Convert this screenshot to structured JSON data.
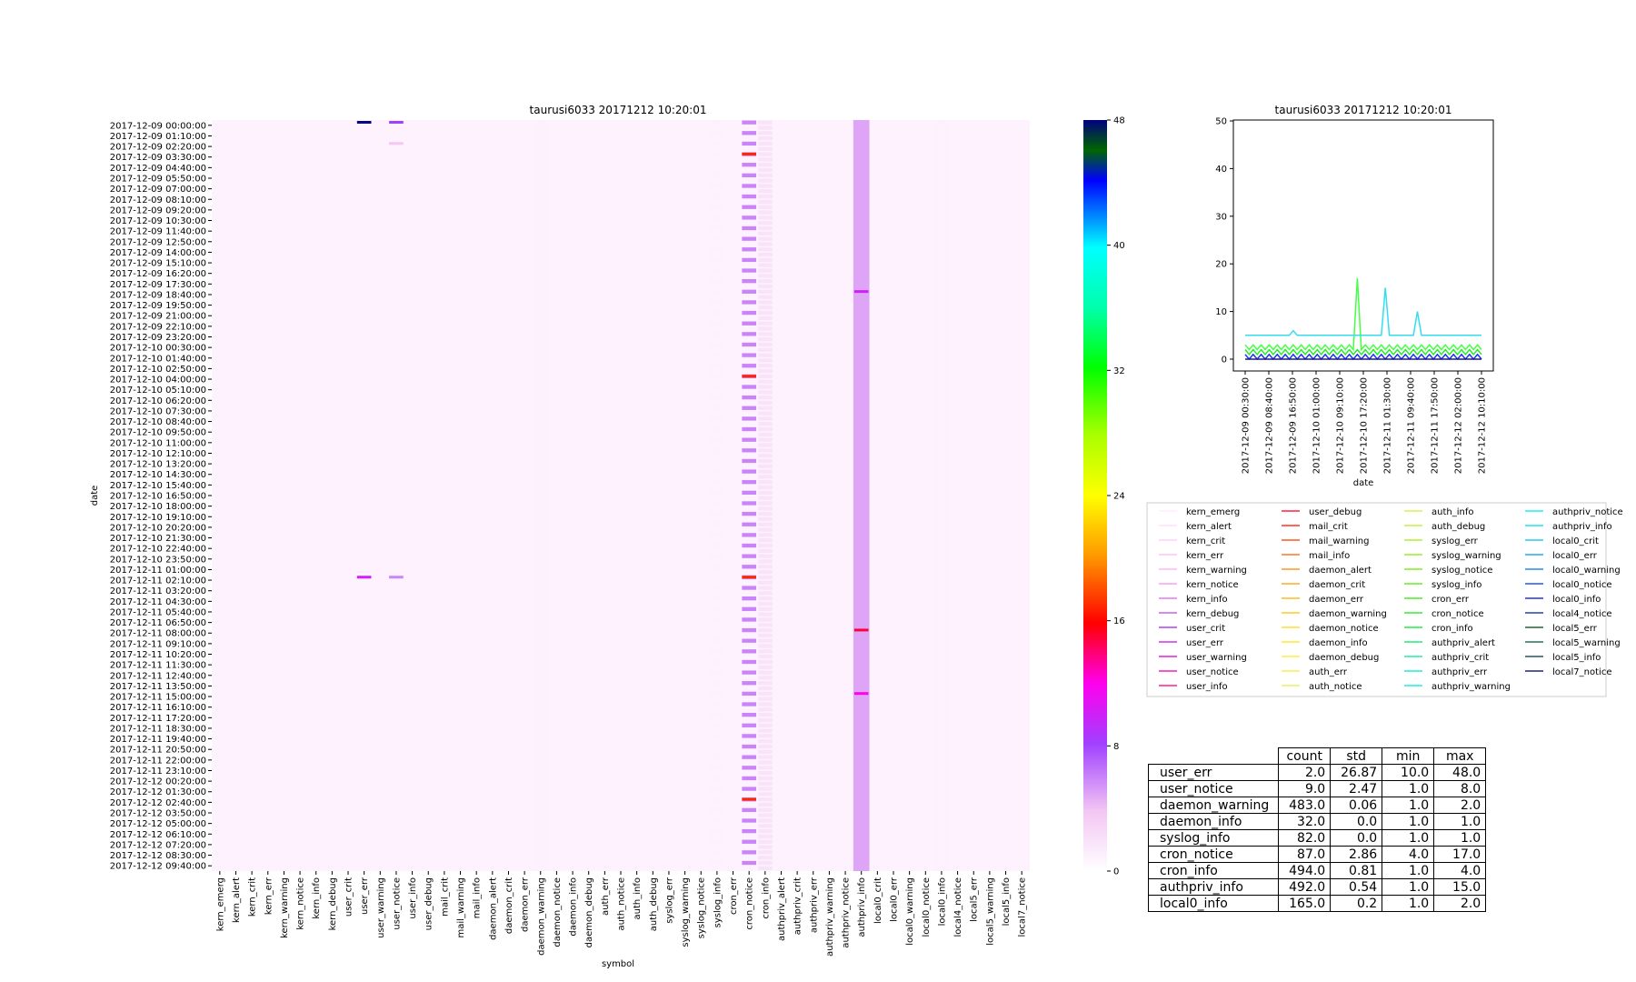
{
  "heatmap": {
    "title": "taurusi6033 20171212 10:20:01",
    "xlabel": "symbol",
    "ylabel": "date",
    "y_ticks": [
      "2017-12-09 00:00:00",
      "2017-12-09 01:10:00",
      "2017-12-09 02:20:00",
      "2017-12-09 03:30:00",
      "2017-12-09 04:40:00",
      "2017-12-09 05:50:00",
      "2017-12-09 07:00:00",
      "2017-12-09 08:10:00",
      "2017-12-09 09:20:00",
      "2017-12-09 10:30:00",
      "2017-12-09 11:40:00",
      "2017-12-09 12:50:00",
      "2017-12-09 14:00:00",
      "2017-12-09 15:10:00",
      "2017-12-09 16:20:00",
      "2017-12-09 17:30:00",
      "2017-12-09 18:40:00",
      "2017-12-09 19:50:00",
      "2017-12-09 21:00:00",
      "2017-12-09 22:10:00",
      "2017-12-09 23:20:00",
      "2017-12-10 00:30:00",
      "2017-12-10 01:40:00",
      "2017-12-10 02:50:00",
      "2017-12-10 04:00:00",
      "2017-12-10 05:10:00",
      "2017-12-10 06:20:00",
      "2017-12-10 07:30:00",
      "2017-12-10 08:40:00",
      "2017-12-10 09:50:00",
      "2017-12-10 11:00:00",
      "2017-12-10 12:10:00",
      "2017-12-10 13:20:00",
      "2017-12-10 14:30:00",
      "2017-12-10 15:40:00",
      "2017-12-10 16:50:00",
      "2017-12-10 18:00:00",
      "2017-12-10 19:10:00",
      "2017-12-10 20:20:00",
      "2017-12-10 21:30:00",
      "2017-12-10 22:40:00",
      "2017-12-10 23:50:00",
      "2017-12-11 01:00:00",
      "2017-12-11 02:10:00",
      "2017-12-11 03:20:00",
      "2017-12-11 04:30:00",
      "2017-12-11 05:40:00",
      "2017-12-11 06:50:00",
      "2017-12-11 08:00:00",
      "2017-12-11 09:10:00",
      "2017-12-11 10:20:00",
      "2017-12-11 11:30:00",
      "2017-12-11 12:40:00",
      "2017-12-11 13:50:00",
      "2017-12-11 15:00:00",
      "2017-12-11 16:10:00",
      "2017-12-11 17:20:00",
      "2017-12-11 18:30:00",
      "2017-12-11 19:40:00",
      "2017-12-11 20:50:00",
      "2017-12-11 22:00:00",
      "2017-12-11 23:10:00",
      "2017-12-12 00:20:00",
      "2017-12-12 01:30:00",
      "2017-12-12 02:40:00",
      "2017-12-12 03:50:00",
      "2017-12-12 05:00:00",
      "2017-12-12 06:10:00",
      "2017-12-12 07:20:00",
      "2017-12-12 08:30:00",
      "2017-12-12 09:40:00"
    ],
    "x_ticks": [
      "kern_emerg",
      "kern_alert",
      "kern_crit",
      "kern_err",
      "kern_warning",
      "kern_notice",
      "kern_info",
      "kern_debug",
      "user_crit",
      "user_err",
      "user_warning",
      "user_notice",
      "user_info",
      "user_debug",
      "mail_crit",
      "mail_warning",
      "mail_info",
      "daemon_alert",
      "daemon_crit",
      "daemon_err",
      "daemon_warning",
      "daemon_notice",
      "daemon_info",
      "daemon_debug",
      "auth_err",
      "auth_notice",
      "auth_info",
      "auth_debug",
      "syslog_err",
      "syslog_warning",
      "syslog_notice",
      "syslog_info",
      "cron_err",
      "cron_notice",
      "cron_info",
      "authpriv_alert",
      "authpriv_crit",
      "authpriv_err",
      "authpriv_warning",
      "authpriv_notice",
      "authpriv_info",
      "local0_crit",
      "local0_err",
      "local0_warning",
      "local0_notice",
      "local0_info",
      "local4_notice",
      "local5_err",
      "local5_warning",
      "local5_info",
      "local7_notice"
    ],
    "colorbar": {
      "ticks": [
        "0",
        "8",
        "16",
        "24",
        "32",
        "40",
        "48"
      ],
      "range": [
        0,
        48
      ]
    },
    "base_levels": [
      {
        "column": "daemon_warning",
        "value": 1
      },
      {
        "column": "authpriv_info",
        "value": 5
      }
    ],
    "dash_columns": [
      {
        "column": "syslog_info",
        "value": 1,
        "every_rows": 2
      },
      {
        "column": "cron_info",
        "value": 2,
        "every_rows": 1
      },
      {
        "column": "local0_info",
        "value": 1,
        "every_rows": 1
      },
      {
        "column": "cron_notice",
        "value": 6,
        "every_rows": 2
      }
    ],
    "highlights": [
      {
        "column": "user_err",
        "row": 0,
        "value": 48
      },
      {
        "column": "user_err",
        "row": 43,
        "value": 10
      },
      {
        "column": "user_notice",
        "row": 0,
        "value": 8
      },
      {
        "column": "user_notice",
        "row": 2,
        "value": 4
      },
      {
        "column": "user_notice",
        "row": 43,
        "value": 6
      },
      {
        "column": "cron_notice",
        "row": 3,
        "value": 17
      },
      {
        "column": "cron_notice",
        "row": 24,
        "value": 17
      },
      {
        "column": "cron_notice",
        "row": 43,
        "value": 17
      },
      {
        "column": "cron_notice",
        "row": 64,
        "value": 17
      },
      {
        "column": "authpriv_info",
        "row": 48,
        "value": 15
      },
      {
        "column": "authpriv_info",
        "row": 54,
        "value": 12
      },
      {
        "column": "authpriv_info",
        "row": 16,
        "value": 10
      }
    ]
  },
  "chart_data": {
    "type": "line",
    "title": "taurusi6033 20171212 10:20:01",
    "xlabel": "date",
    "ylabel": "",
    "x_ticks": [
      "2017-12-09 00:30:00",
      "2017-12-09 08:40:00",
      "2017-12-09 16:50:00",
      "2017-12-10 01:00:00",
      "2017-12-10 09:10:00",
      "2017-12-10 17:20:00",
      "2017-12-11 01:30:00",
      "2017-12-11 09:40:00",
      "2017-12-11 17:50:00",
      "2017-12-12 02:00:00",
      "2017-12-12 10:10:00"
    ],
    "y_ticks": [
      "0",
      "10",
      "20",
      "30",
      "40",
      "50"
    ],
    "ylim": [
      0,
      50
    ],
    "series": [
      {
        "name": "local0_info",
        "value": 1,
        "spikes": [],
        "color": "#1a2ef0"
      },
      {
        "name": "cron_info",
        "value": 2,
        "spikes": [],
        "color": "#22ee22"
      },
      {
        "name": "cron_notice",
        "value": 3,
        "spikes": [
          [
            28,
            17
          ]
        ],
        "color": "#44ff44"
      },
      {
        "name": "authpriv_info",
        "value": 5,
        "spikes": [
          [
            12,
            6
          ],
          [
            35,
            15
          ],
          [
            43,
            10
          ]
        ],
        "color": "#33ddee"
      },
      {
        "name": "local7_notice",
        "value": 0,
        "spikes": [],
        "color": "#1a1a80"
      }
    ]
  },
  "legend": {
    "columns": [
      [
        {
          "label": "kern_emerg",
          "color": "#ffeefe"
        },
        {
          "label": "kern_alert",
          "color": "#ffe0fb"
        },
        {
          "label": "kern_crit",
          "color": "#ffd2f8"
        },
        {
          "label": "kern_err",
          "color": "#ffc4f5"
        },
        {
          "label": "kern_warning",
          "color": "#ffb6f2"
        },
        {
          "label": "kern_notice",
          "color": "#f5a0f2"
        },
        {
          "label": "kern_info",
          "color": "#e678f2"
        },
        {
          "label": "kern_debug",
          "color": "#c860f0"
        },
        {
          "label": "user_crit",
          "color": "#b040f0"
        },
        {
          "label": "user_err",
          "color": "#cc33ee"
        },
        {
          "label": "user_warning",
          "color": "#dd22dd"
        },
        {
          "label": "user_notice",
          "color": "#ee22bb"
        },
        {
          "label": "user_info",
          "color": "#ff2288"
        }
      ],
      [
        {
          "label": "user_debug",
          "color": "#ff2244"
        },
        {
          "label": "mail_crit",
          "color": "#ff3322"
        },
        {
          "label": "mail_warning",
          "color": "#ff5522"
        },
        {
          "label": "mail_info",
          "color": "#ff7722"
        },
        {
          "label": "daemon_alert",
          "color": "#ff9922"
        },
        {
          "label": "daemon_crit",
          "color": "#ffaa22"
        },
        {
          "label": "daemon_err",
          "color": "#ffbb22"
        },
        {
          "label": "daemon_warning",
          "color": "#ffcc22"
        },
        {
          "label": "daemon_notice",
          "color": "#ffdd33"
        },
        {
          "label": "daemon_info",
          "color": "#ffe833"
        },
        {
          "label": "daemon_debug",
          "color": "#fff044"
        },
        {
          "label": "auth_err",
          "color": "#f4f455"
        },
        {
          "label": "auth_notice",
          "color": "#e8f060"
        }
      ],
      [
        {
          "label": "auth_info",
          "color": "#d8f050"
        },
        {
          "label": "auth_debug",
          "color": "#c4f040"
        },
        {
          "label": "syslog_err",
          "color": "#b0f030"
        },
        {
          "label": "syslog_warning",
          "color": "#98ee28"
        },
        {
          "label": "syslog_notice",
          "color": "#80ee22"
        },
        {
          "label": "syslog_info",
          "color": "#66ee22"
        },
        {
          "label": "cron_err",
          "color": "#4cee22"
        },
        {
          "label": "cron_notice",
          "color": "#33ee33"
        },
        {
          "label": "cron_info",
          "color": "#22ee44"
        },
        {
          "label": "authpriv_alert",
          "color": "#22ee77"
        },
        {
          "label": "authpriv_crit",
          "color": "#22eeaa"
        },
        {
          "label": "authpriv_err",
          "color": "#22eecc"
        },
        {
          "label": "authpriv_warning",
          "color": "#22eedd"
        }
      ],
      [
        {
          "label": "authpriv_notice",
          "color": "#22eeee"
        },
        {
          "label": "authpriv_info",
          "color": "#22e0f4"
        },
        {
          "label": "local0_crit",
          "color": "#22ccf4"
        },
        {
          "label": "local0_err",
          "color": "#22aaf0"
        },
        {
          "label": "local0_warning",
          "color": "#2288ee"
        },
        {
          "label": "local0_notice",
          "color": "#2255ee"
        },
        {
          "label": "local0_info",
          "color": "#2233dd"
        },
        {
          "label": "local4_notice",
          "color": "#2244aa"
        },
        {
          "label": "local5_err",
          "color": "#226633"
        },
        {
          "label": "local5_warning",
          "color": "#227755"
        },
        {
          "label": "local5_info",
          "color": "#225566"
        },
        {
          "label": "local7_notice",
          "color": "#22227a"
        }
      ]
    ]
  },
  "stats_table": {
    "headers": [
      "count",
      "std",
      "min",
      "max"
    ],
    "rows": [
      {
        "label": "user_err",
        "values": [
          "2.0",
          "26.87",
          "10.0",
          "48.0"
        ]
      },
      {
        "label": "user_notice",
        "values": [
          "9.0",
          "2.47",
          "1.0",
          "8.0"
        ]
      },
      {
        "label": "daemon_warning",
        "values": [
          "483.0",
          "0.06",
          "1.0",
          "2.0"
        ]
      },
      {
        "label": "daemon_info",
        "values": [
          "32.0",
          "0.0",
          "1.0",
          "1.0"
        ]
      },
      {
        "label": "syslog_info",
        "values": [
          "82.0",
          "0.0",
          "1.0",
          "1.0"
        ]
      },
      {
        "label": "cron_notice",
        "values": [
          "87.0",
          "2.86",
          "4.0",
          "17.0"
        ]
      },
      {
        "label": "cron_info",
        "values": [
          "494.0",
          "0.81",
          "1.0",
          "4.0"
        ]
      },
      {
        "label": "authpriv_info",
        "values": [
          "492.0",
          "0.54",
          "1.0",
          "15.0"
        ]
      },
      {
        "label": "local0_info",
        "values": [
          "165.0",
          "0.2",
          "1.0",
          "2.0"
        ]
      }
    ]
  }
}
